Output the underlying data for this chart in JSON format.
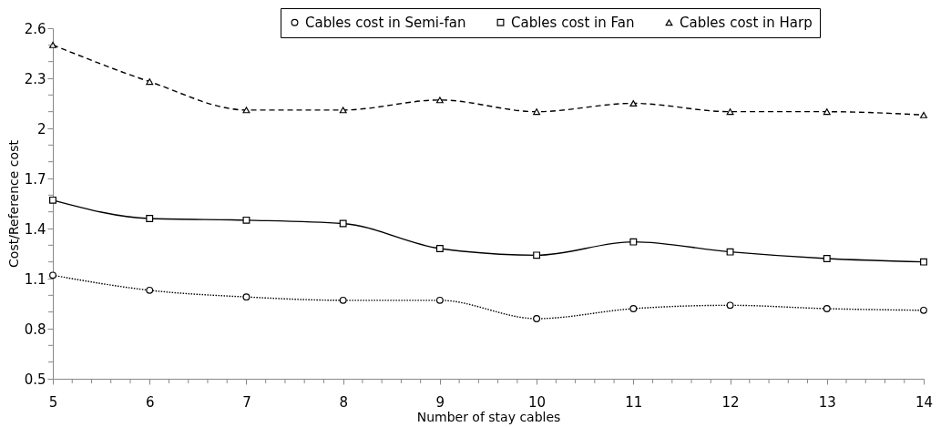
{
  "chart_data": {
    "type": "line",
    "xlabel": "Number of stay cables",
    "ylabel": "Cost/Reference cost",
    "x": [
      5,
      6,
      7,
      8,
      9,
      10,
      11,
      12,
      13,
      14
    ],
    "series": [
      {
        "name": "Cables cost in Semi-fan",
        "color": "#000000",
        "marker": "circle",
        "line_style": "dotted",
        "values": [
          1.12,
          1.03,
          0.99,
          0.97,
          0.97,
          0.86,
          0.92,
          0.94,
          0.92,
          0.91
        ]
      },
      {
        "name": "Cables cost in Fan",
        "color": "#000000",
        "marker": "square",
        "line_style": "solid",
        "values": [
          1.57,
          1.46,
          1.45,
          1.43,
          1.28,
          1.24,
          1.32,
          1.26,
          1.22,
          1.2
        ]
      },
      {
        "name": "Cables cost in Harp",
        "color": "#000000",
        "marker": "triangle",
        "line_style": "dashed",
        "values": [
          2.5,
          2.28,
          2.11,
          2.11,
          2.17,
          2.1,
          2.15,
          2.1,
          2.1,
          2.08
        ]
      }
    ],
    "xlim": [
      5,
      14
    ],
    "xticks": [
      5,
      {
        "value": 5.2,
        "label": null
      },
      {
        "value": 5.4,
        "label": null
      },
      {
        "value": 5.6,
        "label": null
      },
      {
        "value": 5.8,
        "label": null
      },
      6,
      {
        "value": 6.2,
        "label": null
      },
      {
        "value": 6.4,
        "label": null
      },
      {
        "value": 6.6,
        "label": null
      },
      {
        "value": 6.8,
        "label": null
      },
      7,
      {
        "value": 7.2,
        "label": null
      },
      {
        "value": 7.4,
        "label": null
      },
      {
        "value": 7.6,
        "label": null
      },
      {
        "value": 7.8,
        "label": null
      },
      8,
      {
        "value": 8.2,
        "label": null
      },
      {
        "value": 8.4,
        "label": null
      },
      {
        "value": 8.6,
        "label": null
      },
      {
        "value": 8.8,
        "label": null
      },
      9,
      {
        "value": 9.2,
        "label": null
      },
      {
        "value": 9.4,
        "label": null
      },
      {
        "value": 9.6,
        "label": null
      },
      {
        "value": 9.8,
        "label": null
      },
      10,
      {
        "value": 10.2,
        "label": null
      },
      {
        "value": 10.4,
        "label": null
      },
      {
        "value": 10.6,
        "label": null
      },
      {
        "value": 10.8,
        "label": null
      },
      11,
      {
        "value": 11.2,
        "label": null
      },
      {
        "value": 11.4,
        "label": null
      },
      {
        "value": 11.6,
        "label": null
      },
      {
        "value": 11.8,
        "label": null
      },
      12,
      {
        "value": 12.2,
        "label": null
      },
      {
        "value": 12.4,
        "label": null
      },
      {
        "value": 12.6,
        "label": null
      },
      {
        "value": 12.8,
        "label": null
      },
      13,
      {
        "value": 13.2,
        "label": null
      },
      {
        "value": 13.4,
        "label": null
      },
      {
        "value": 13.6,
        "label": null
      },
      {
        "value": 13.8,
        "label": null
      },
      14
    ],
    "ylim": [
      0.5,
      2.6
    ],
    "yticks": [
      0.5,
      {
        "value": 0.6,
        "label": null
      },
      {
        "value": 0.7,
        "label": null
      },
      0.8,
      {
        "value": 0.9,
        "label": null
      },
      {
        "value": 1.0,
        "label": null
      },
      1.1,
      {
        "value": 1.2,
        "label": null
      },
      {
        "value": 1.3,
        "label": null
      },
      1.4,
      {
        "value": 1.5,
        "label": null
      },
      {
        "value": 1.6,
        "label": null
      },
      1.7,
      {
        "value": 1.8,
        "label": null
      },
      {
        "value": 1.9,
        "label": null
      },
      2,
      {
        "value": 2.1,
        "label": null
      },
      {
        "value": 2.2,
        "label": null
      },
      2.3,
      {
        "value": 2.4,
        "label": null
      },
      {
        "value": 2.5,
        "label": null
      },
      2.6
    ],
    "grid": false,
    "legend": "top right"
  }
}
